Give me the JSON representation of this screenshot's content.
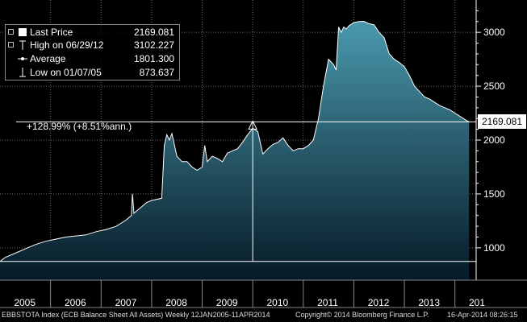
{
  "legend": {
    "last_price_label": "Last Price",
    "last_price_value": "2169.081",
    "high_label": "High on 06/29/12",
    "high_value": "3102.227",
    "average_label": "Average",
    "average_value": "1801.300",
    "low_label": "Low on 01/07/05",
    "low_value": "873.637"
  },
  "annotation": {
    "change_text": "+128.99% (+8.51%ann.)"
  },
  "price_tag": "2169.081",
  "footer": {
    "left": "EBBSTOTA Index (ECB Balance Sheet All Assets)  Weekly 12JAN2005-11APR2014",
    "center": "Copyright© 2014 Bloomberg Finance L.P.",
    "right": "16-Apr-2014 08:26:15"
  },
  "colors": {
    "area_top": "#4a98ad",
    "area_bottom": "#061a26",
    "line": "#ffffff"
  },
  "chart_data": {
    "type": "area",
    "x_ticks": [
      "2005",
      "2006",
      "2007",
      "2008",
      "2009",
      "2010",
      "2011",
      "2012",
      "2013",
      "201"
    ],
    "y_ticks": [
      "3000",
      "2500",
      "2000",
      "1500",
      "1000"
    ],
    "xlim": [
      2005.0,
      2014.42
    ],
    "ylim": [
      700,
      3300
    ],
    "grid": true,
    "legend_position": "top-left",
    "reference_lines": {
      "high": 3102.227,
      "low": 873.637,
      "last": 2169.081
    },
    "x": [
      2005.0,
      2005.1,
      2005.3,
      2005.5,
      2005.7,
      2005.9,
      2006.1,
      2006.3,
      2006.5,
      2006.7,
      2006.9,
      2007.1,
      2007.3,
      2007.5,
      2007.6,
      2007.62,
      2007.65,
      2007.7,
      2007.8,
      2007.9,
      2008.0,
      2008.1,
      2008.2,
      2008.25,
      2008.3,
      2008.35,
      2008.4,
      2008.5,
      2008.6,
      2008.7,
      2008.8,
      2008.9,
      2009.0,
      2009.05,
      2009.1,
      2009.2,
      2009.3,
      2009.4,
      2009.5,
      2009.6,
      2009.7,
      2009.8,
      2009.9,
      2010.0,
      2010.1,
      2010.2,
      2010.3,
      2010.4,
      2010.5,
      2010.6,
      2010.7,
      2010.8,
      2010.9,
      2011.0,
      2011.1,
      2011.2,
      2011.3,
      2011.4,
      2011.5,
      2011.6,
      2011.65,
      2011.7,
      2011.75,
      2011.8,
      2011.85,
      2011.9,
      2012.0,
      2012.1,
      2012.2,
      2012.3,
      2012.4,
      2012.5,
      2012.6,
      2012.7,
      2012.8,
      2012.9,
      2013.0,
      2013.1,
      2013.2,
      2013.3,
      2013.4,
      2013.5,
      2013.6,
      2013.7,
      2013.8,
      2013.9,
      2014.0,
      2014.1,
      2014.2,
      2014.28
    ],
    "values": [
      873.637,
      910,
      950,
      990,
      1030,
      1060,
      1080,
      1100,
      1110,
      1120,
      1150,
      1170,
      1200,
      1260,
      1300,
      1500,
      1320,
      1340,
      1380,
      1420,
      1440,
      1450,
      1460,
      1950,
      2050,
      2000,
      2060,
      1850,
      1800,
      1800,
      1750,
      1720,
      1750,
      1950,
      1800,
      1850,
      1830,
      1800,
      1880,
      1900,
      1920,
      1980,
      2050,
      2110,
      2080,
      1870,
      1920,
      1960,
      1980,
      2020,
      1950,
      1900,
      1920,
      1920,
      1950,
      2000,
      2200,
      2500,
      2750,
      2700,
      2650,
      3050,
      3000,
      3050,
      3030,
      3060,
      3090,
      3100,
      3102.227,
      3080,
      3070,
      3000,
      2950,
      2800,
      2750,
      2720,
      2680,
      2600,
      2500,
      2450,
      2400,
      2380,
      2350,
      2320,
      2300,
      2280,
      2250,
      2220,
      2190,
      2169.081
    ]
  }
}
